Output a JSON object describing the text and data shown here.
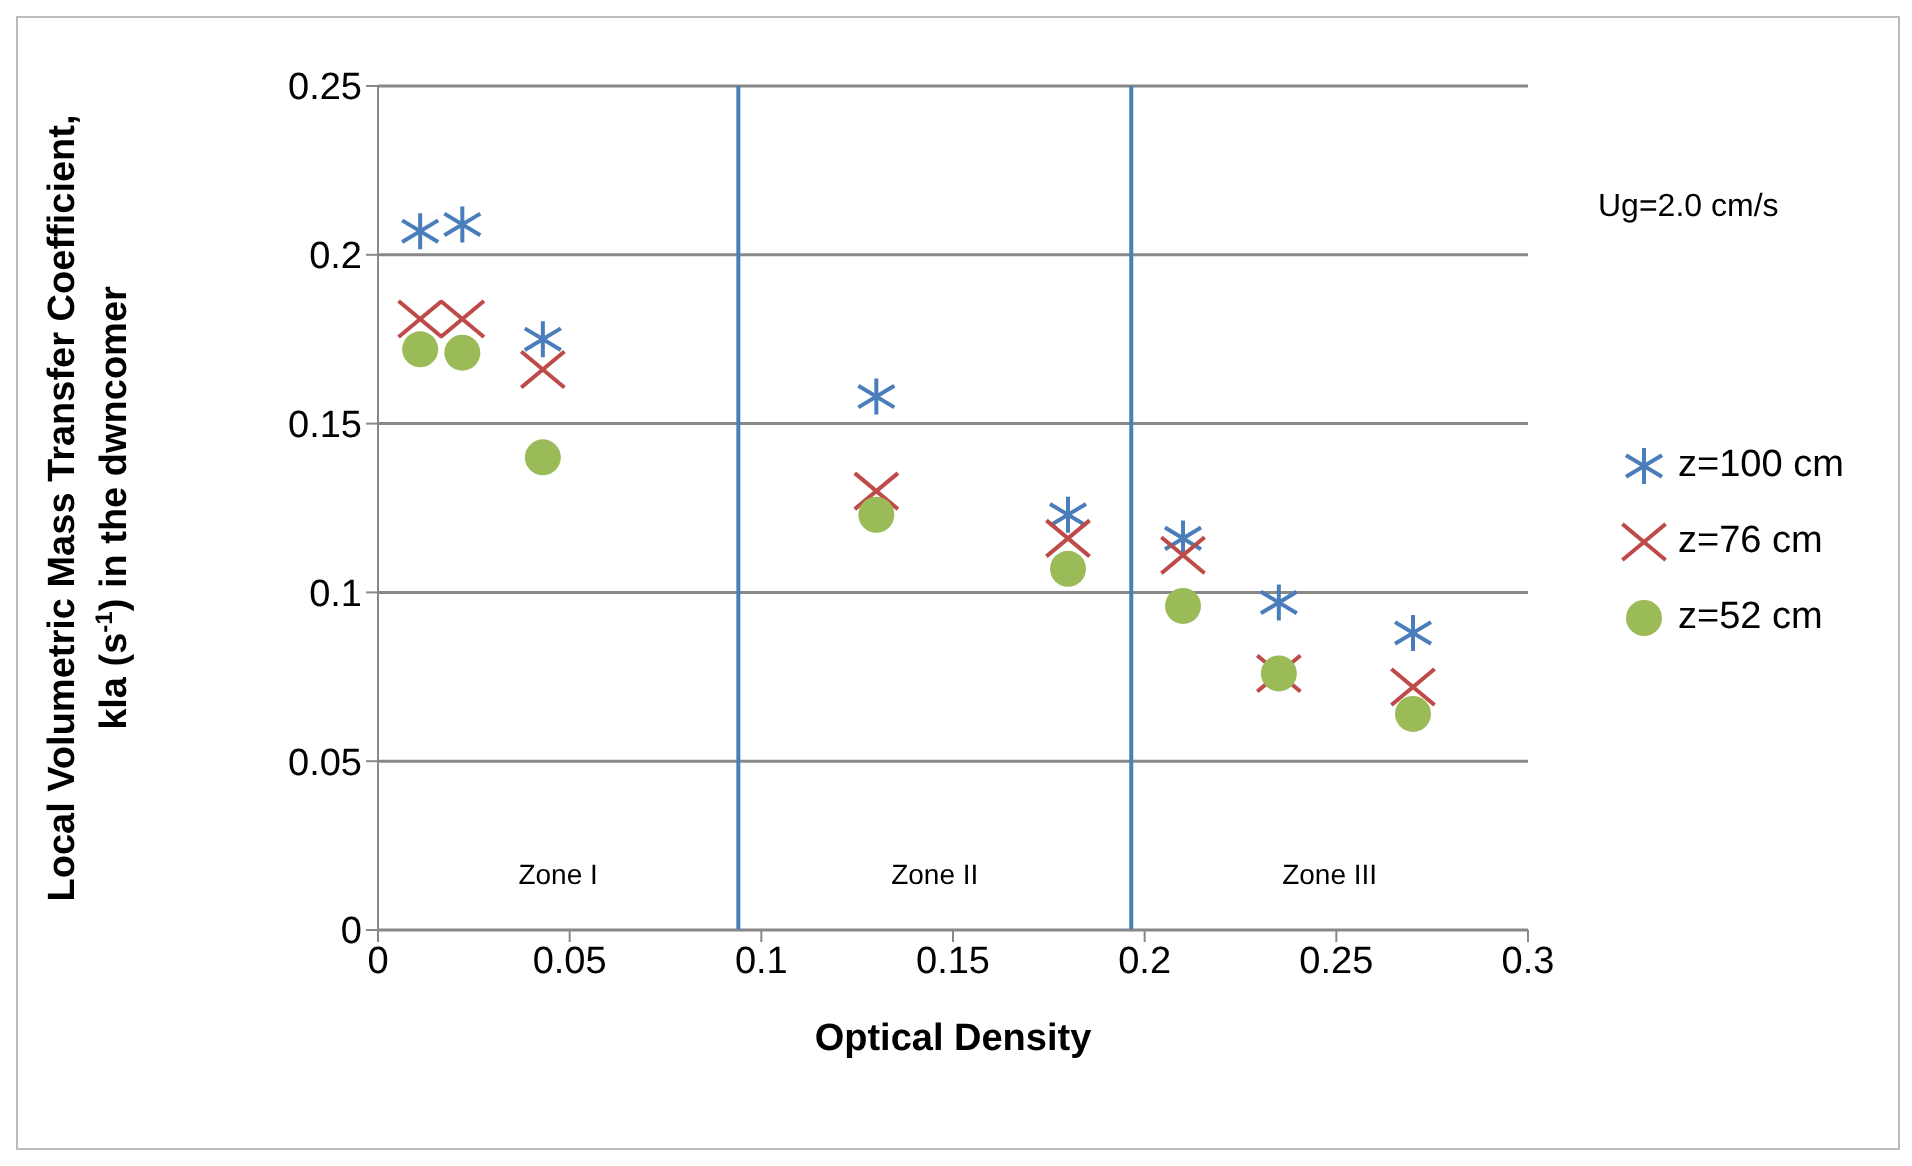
{
  "chart_data": {
    "type": "scatter",
    "xlabel": "Optical Density",
    "ylabel": "Local Volumetric Mass Transfer Coefficient, kla (s$^{-1}$) in the dwncomer",
    "x": [
      0.011,
      0.022,
      0.043,
      0.13,
      0.18,
      0.21,
      0.235,
      0.27
    ],
    "series": [
      {
        "name": "z=100 cm",
        "color": "#4a7ebb",
        "values": [
          0.207,
          0.209,
          0.175,
          0.158,
          0.123,
          0.116,
          0.097,
          0.088
        ]
      },
      {
        "name": "z=76 cm",
        "color": "#be4b48",
        "marker": "cross",
        "values": [
          0.181,
          0.181,
          0.166,
          0.13,
          0.116,
          0.111,
          0.076,
          0.072
        ]
      },
      {
        "name": "z=52 cm",
        "color": "#9bbb59",
        "marker": "circle",
        "values": [
          0.172,
          0.171,
          0.14,
          0.123,
          0.107,
          0.096,
          0.076,
          0.064
        ]
      }
    ],
    "xlim": [
      0,
      0.3
    ],
    "xticks": [
      0,
      0.05,
      0.1,
      0.15,
      0.2,
      0.25,
      0.3
    ],
    "ylim": [
      0,
      0.25
    ],
    "yticks": [
      0,
      0.05,
      0.1,
      0.15,
      0.2,
      0.25
    ],
    "grid": "y",
    "legend": "right",
    "ref_lines": [
      {
        "axis": "x",
        "value": 0.094,
        "color": "#4a7ebb"
      },
      {
        "axis": "x",
        "value": 0.1965,
        "color": "#4a7ebb"
      }
    ],
    "annotations": [
      "Zone I",
      "Zone II",
      "Zone III",
      "Ug=2.0 cm/s"
    ]
  }
}
